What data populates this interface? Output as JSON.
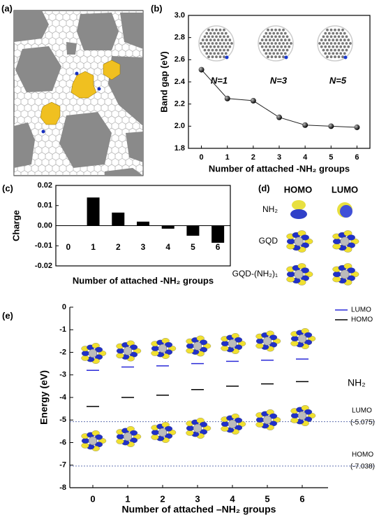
{
  "panel_a": {
    "label": "(a)"
  },
  "panel_d": {
    "label": "(d)",
    "columns": [
      "HOMO",
      "LUMO"
    ],
    "rows": [
      "NH₂",
      "GQD",
      "GQD-(NH₂)₁"
    ]
  },
  "chart_data": [
    {
      "type": "line",
      "panel_label": "(b)",
      "xlabel": "Number of attached -NH₂ groups",
      "ylabel": "Band gap (eV)",
      "x": [
        0,
        1,
        2,
        3,
        4,
        5,
        6
      ],
      "values": [
        2.51,
        2.25,
        2.23,
        2.08,
        2.01,
        2.0,
        1.99
      ],
      "color": "#222222",
      "xlim": [
        -0.5,
        6.5
      ],
      "xticks": [
        0,
        1,
        2,
        3,
        4,
        5,
        6
      ],
      "ylim": [
        1.8,
        3.0
      ],
      "yticks": [
        1.8,
        {
          "value": 2,
          "label": "2.0"
        },
        2.2,
        2.4,
        2.6,
        2.8,
        {
          "value": 3,
          "label": "3.0"
        }
      ],
      "annotations": [
        "N=1",
        "N=3",
        "N=5"
      ]
    },
    {
      "type": "bar",
      "panel_label": "(c)",
      "xlabel": "Number of attached -NH₂ groups",
      "ylabel": "Charge",
      "categories": [
        "0",
        "1",
        "2",
        "3",
        "4",
        "5",
        "6"
      ],
      "values": [
        0,
        0.014,
        0.0065,
        0.002,
        -0.0015,
        -0.005,
        -0.0085
      ],
      "color": "#000000",
      "ylim": [
        -0.02,
        0.02
      ],
      "yticks": [
        -0.02,
        -0.01,
        {
          "value": 0,
          "label": "0.00"
        },
        0.01,
        0.02
      ]
    },
    {
      "type": "level",
      "panel_label": "(e)",
      "xlabel": "Number of attached –NH₂ groups",
      "ylabel": "Energy (eV)",
      "categories": [
        "0",
        "1",
        "2",
        "3",
        "4",
        "5",
        "6"
      ],
      "series": [
        {
          "name": "LUMO",
          "color": "#2a2ad8",
          "values": [
            -2.8,
            -2.65,
            -2.6,
            -2.5,
            -2.4,
            -2.35,
            -2.3
          ]
        },
        {
          "name": "HOMO",
          "color": "#000000",
          "values": [
            -4.4,
            -4.0,
            -3.9,
            -3.65,
            -3.5,
            -3.4,
            -3.3
          ]
        }
      ],
      "ylim": [
        -8,
        0
      ],
      "yticks": [
        -8,
        -7,
        -6,
        -5,
        -4,
        -3,
        -2,
        -1,
        0
      ],
      "annotation": "NH₂",
      "reference_lines": [
        {
          "label": "LUMO",
          "value": -5.075,
          "value_label": "(-5.075)"
        },
        {
          "label": "HOMO",
          "value": -7.038,
          "value_label": "(-7.038)"
        }
      ]
    }
  ]
}
